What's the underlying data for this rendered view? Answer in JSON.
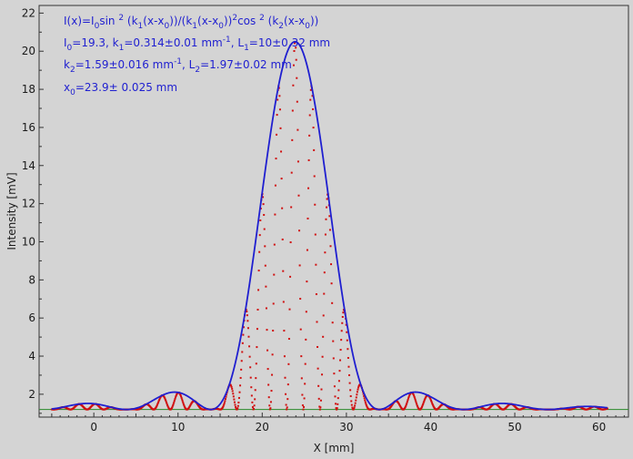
{
  "chart_data": {
    "type": "scatter",
    "title": "",
    "xlabel": "X [mm]",
    "ylabel": "Intensity [mV]",
    "xlim": [
      -6.5,
      63.5
    ],
    "ylim": [
      0.8,
      22.4
    ],
    "x_ticks": [
      0,
      10,
      20,
      30,
      40,
      50,
      60
    ],
    "y_ticks": [
      2,
      4,
      6,
      8,
      10,
      12,
      14,
      16,
      18,
      20,
      22
    ],
    "grid": false,
    "legend": "none",
    "annotations": {
      "line1": {
        "a": "I(x)=I",
        "b": "0",
        "c": "sin ",
        "d": "2",
        "e": " (k",
        "f": "1",
        "g": "(x-x",
        "h": "0",
        "i": "))/(k",
        "j": "1",
        "k": "(x-x",
        "l": "0",
        "m": "))",
        "n": "2",
        "o": "cos ",
        "p": "2",
        "q": " (k",
        "r": "2",
        "s": "(x-x",
        "t": "0",
        "u": "))"
      },
      "line2": {
        "a": "I",
        "b": "0",
        "c": "=19.3,  k",
        "d": "1",
        "e": "=0.314±0.01 mm",
        "f": "-1",
        "g": ",   L",
        "h": "1",
        "i": "=10±0.32 mm"
      },
      "line3": {
        "a": "k",
        "b": "2",
        "c": "=1.59±0.016 mm",
        "d": "-1",
        "e": ",   L",
        "f": "2",
        "g": "=1.97±0.02 mm"
      },
      "line4": {
        "a": "x",
        "b": "0",
        "c": "=23.9±  0.025 mm"
      }
    },
    "series": [
      {
        "kind": "envelope-fit",
        "color": "#1f1fd0",
        "baseline": 1.2,
        "I0": 19.3,
        "k1": 0.314,
        "k2": 1.59,
        "x0": 23.9,
        "x_range": [
          -5,
          61
        ]
      },
      {
        "kind": "measured-points",
        "color": "#d01010",
        "baseline": 1.2,
        "I0": 19.3,
        "k1": 0.314,
        "k2": 1.59,
        "x0": 23.9,
        "x_range": [
          -5,
          61
        ]
      },
      {
        "kind": "residual-line",
        "color": "#2a8a2a",
        "value": 1.2,
        "x_range": [
          -6.5,
          63.5
        ]
      }
    ]
  }
}
